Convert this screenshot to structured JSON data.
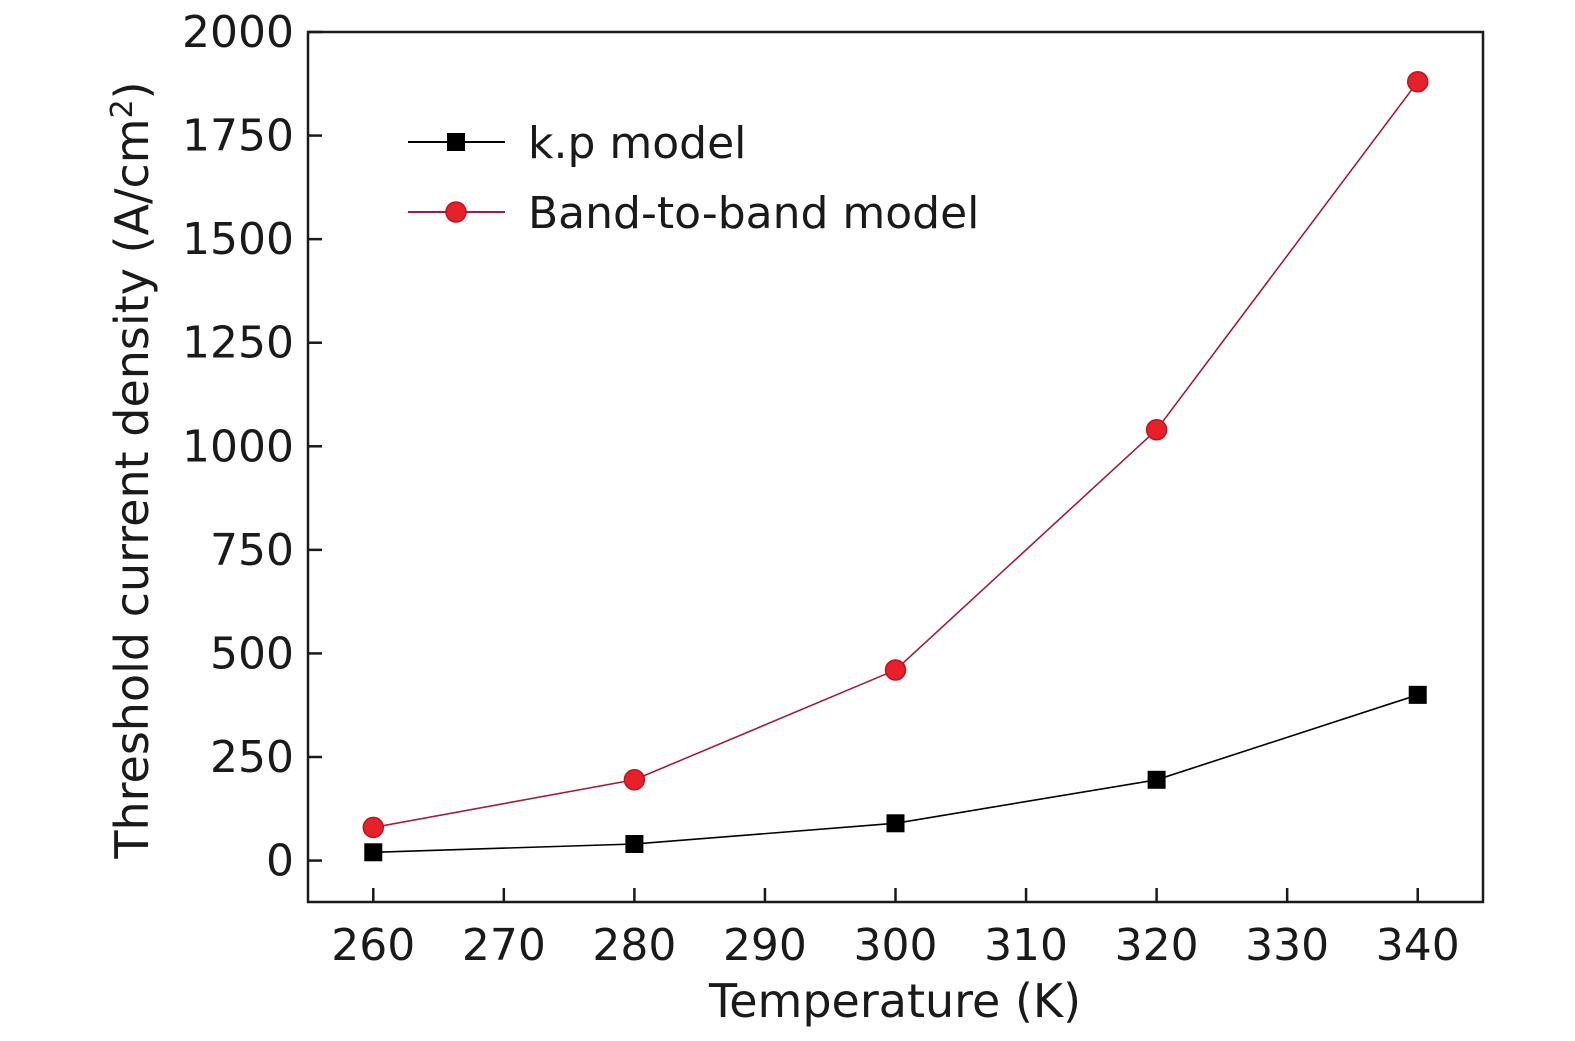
{
  "chart_data": {
    "type": "line",
    "xlabel": "Temperature (K)",
    "ylabel_main": "Threshold current density (A/cm",
    "ylabel_sup": "2",
    "ylabel_close": ")",
    "xlim": [
      255,
      345
    ],
    "ylim": [
      -100,
      2000
    ],
    "xticks": [
      260,
      270,
      280,
      290,
      300,
      310,
      320,
      330,
      340
    ],
    "yticks": [
      0,
      250,
      500,
      750,
      1000,
      1250,
      1500,
      1750,
      2000
    ],
    "grid": false,
    "legend": "top-left",
    "x": [
      260,
      280,
      300,
      320,
      340
    ],
    "series": [
      {
        "name": "k.p model",
        "marker": "square",
        "color": "#000000",
        "line_color": "#000000",
        "values": [
          20,
          40,
          90,
          195,
          400
        ]
      },
      {
        "name": "Band-to-band model",
        "marker": "circle",
        "color": "#e8202a",
        "line_color": "#a01e3c",
        "values": [
          80,
          195,
          460,
          1040,
          1880
        ]
      }
    ]
  }
}
